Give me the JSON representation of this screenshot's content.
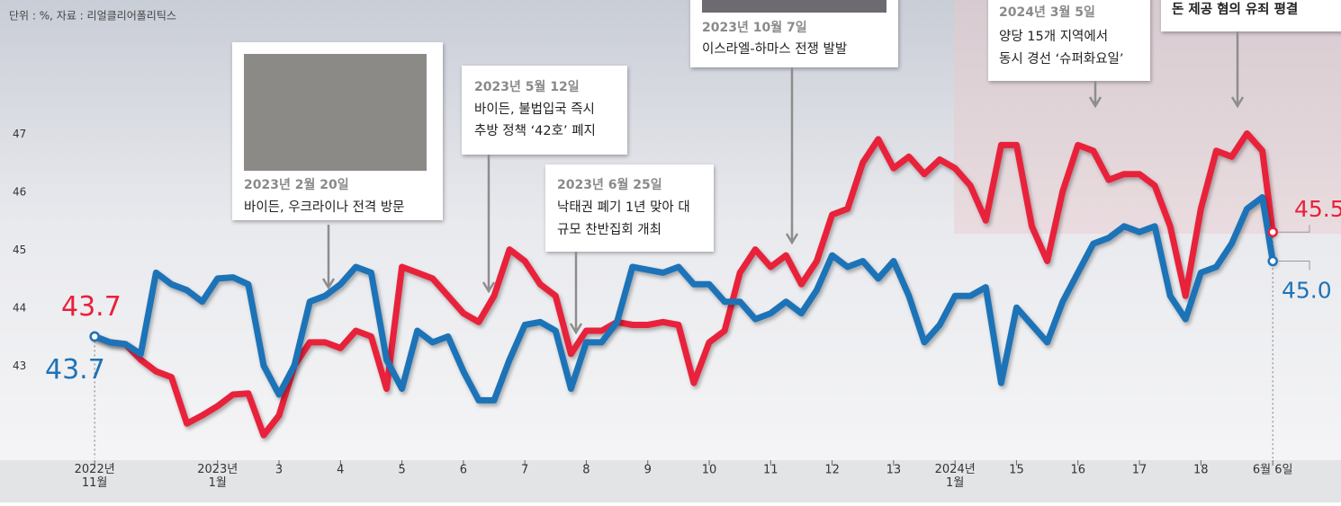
{
  "chart_data": {
    "type": "line",
    "source": "단위 : %, 자료 : 리얼클리어폴리틱스",
    "x": [
      0,
      0.25,
      0.5,
      0.75,
      1,
      1.25,
      1.5,
      1.75,
      2,
      2.25,
      2.5,
      2.75,
      3,
      3.25,
      3.5,
      3.75,
      4,
      4.25,
      4.5,
      4.75,
      5,
      5.25,
      5.5,
      5.75,
      6,
      6.25,
      6.5,
      6.75,
      7,
      7.25,
      7.5,
      7.75,
      8,
      8.25,
      8.5,
      8.75,
      9,
      9.25,
      9.5,
      9.75,
      10,
      10.25,
      10.5,
      10.75,
      11,
      11.25,
      11.5,
      11.75,
      12,
      12.25,
      12.5,
      12.75,
      13,
      13.25,
      13.5,
      13.75,
      14,
      14.25,
      14.5,
      14.75,
      15,
      15.25,
      15.5,
      15.75,
      16,
      16.25,
      16.5,
      16.75,
      17,
      17.25,
      17.5,
      17.75,
      18,
      18.25,
      18.5,
      18.75,
      19,
      19.17
    ],
    "series": [
      {
        "color": "#e8213a",
        "values": [
          43.7,
          43.6,
          43.57,
          43.3,
          43.1,
          43.0,
          42.2,
          42.34,
          42.5,
          42.7,
          42.72,
          42.0,
          42.34,
          43.2,
          43.6,
          43.6,
          43.5,
          43.8,
          43.7,
          42.8,
          44.9,
          44.8,
          44.7,
          44.4,
          44.1,
          43.95,
          44.4,
          45.2,
          45.0,
          44.6,
          44.4,
          43.4,
          43.8,
          43.8,
          43.95,
          43.9,
          43.9,
          43.95,
          43.9,
          42.9,
          43.6,
          43.8,
          44.8,
          45.2,
          44.9,
          45.1,
          44.6,
          45.0,
          45.8,
          45.9,
          46.7,
          47.1,
          46.6,
          46.8,
          46.5,
          46.75,
          46.6,
          46.3,
          45.7,
          47.0,
          47.0,
          45.6,
          45.0,
          46.2,
          47.0,
          46.9,
          46.4,
          46.5,
          46.5,
          46.3,
          45.6,
          44.4,
          45.9,
          46.9,
          46.8,
          47.2,
          46.9,
          45.5
        ],
        "value_labels": [
          "43.7",
          null,
          null,
          null,
          null,
          null,
          null,
          null,
          null,
          null,
          null,
          null,
          null,
          null,
          null,
          null,
          null,
          null,
          null,
          null,
          null,
          null,
          null,
          null,
          null,
          null,
          null,
          null,
          null,
          null,
          null,
          null,
          null,
          null,
          null,
          null,
          null,
          null,
          null,
          null,
          null,
          null,
          null,
          null,
          null,
          null,
          null,
          null,
          null,
          null,
          null,
          null,
          null,
          null,
          null,
          null,
          null,
          null,
          null,
          null,
          null,
          null,
          null,
          null,
          null,
          null,
          null,
          null,
          null,
          null,
          null,
          null,
          null,
          null,
          null,
          null,
          null,
          "45.5"
        ]
      },
      {
        "color": "#1f73b7",
        "values": [
          43.7,
          43.6,
          43.57,
          43.4,
          44.8,
          44.6,
          44.5,
          44.3,
          44.7,
          44.72,
          44.6,
          43.2,
          42.7,
          43.2,
          44.3,
          44.4,
          44.6,
          44.9,
          44.8,
          43.3,
          42.8,
          43.8,
          43.6,
          43.7,
          43.1,
          42.6,
          42.6,
          43.3,
          43.9,
          43.95,
          43.8,
          42.8,
          43.6,
          43.6,
          43.95,
          44.9,
          44.85,
          44.8,
          44.9,
          44.6,
          44.6,
          44.3,
          44.3,
          44.0,
          44.1,
          44.3,
          44.1,
          44.5,
          45.1,
          44.9,
          45.0,
          44.7,
          45.0,
          44.4,
          43.6,
          43.9,
          44.4,
          44.4,
          44.55,
          42.9,
          44.2,
          43.9,
          43.6,
          44.3,
          44.8,
          45.3,
          45.4,
          45.6,
          45.5,
          45.6,
          44.4,
          44.0,
          44.8,
          44.9,
          45.3,
          45.9,
          46.1,
          45.0
        ],
        "value_labels": [
          "43.7",
          null,
          null,
          null,
          null,
          null,
          null,
          null,
          null,
          null,
          null,
          null,
          null,
          null,
          null,
          null,
          null,
          null,
          null,
          null,
          null,
          null,
          null,
          null,
          null,
          null,
          null,
          null,
          null,
          null,
          null,
          null,
          null,
          null,
          null,
          null,
          null,
          null,
          null,
          null,
          null,
          null,
          null,
          null,
          null,
          null,
          null,
          null,
          null,
          null,
          null,
          null,
          null,
          null,
          null,
          null,
          null,
          null,
          null,
          null,
          null,
          null,
          null,
          null,
          null,
          null,
          null,
          null,
          null,
          null,
          null,
          null,
          null,
          null,
          null,
          null,
          null,
          "45.0"
        ]
      }
    ],
    "xlim": [
      -1.54,
      20.28
    ],
    "xticks": [
      {
        "value": 0,
        "label": "2022년\n11월"
      },
      {
        "value": 2,
        "label": "2023년\n1월"
      },
      3,
      4,
      5,
      6,
      7,
      8,
      9,
      10,
      11,
      12,
      13,
      {
        "value": 14,
        "label": "2024년\n1월"
      },
      15,
      16,
      17,
      18,
      {
        "value": 19.17,
        "label": "6월 6일"
      }
    ],
    "xtick_names": null,
    "ylim": [
      41.6,
      49.5
    ],
    "yticks": [
      43,
      44,
      45,
      46,
      47
    ],
    "annotations": [
      {
        "date": "2023년 2월 20일",
        "lines": [
          "바이든, 우크라이나 전격 방문"
        ]
      },
      {
        "date": "2023년 5월 12일",
        "lines": [
          "바이든, 불법입국 즉시",
          "추방 정책 ‘42호’ 폐지"
        ]
      },
      {
        "date": "2023년 6월 25일",
        "lines": [
          "낙태권 폐기 1년 맞아 대",
          "규모 찬반집회 개최"
        ]
      },
      {
        "date": "2023년 10월 7일",
        "lines": [
          "이스라엘-하마스 전쟁 발발"
        ]
      },
      {
        "date": "2024년 3월 5일",
        "lines": [
          "양당 15개 지역에서",
          "동시 경선 ‘슈퍼화요일’"
        ]
      },
      {
        "lines": [
          "돈 제공 혐의 유죄 평결"
        ]
      }
    ]
  }
}
